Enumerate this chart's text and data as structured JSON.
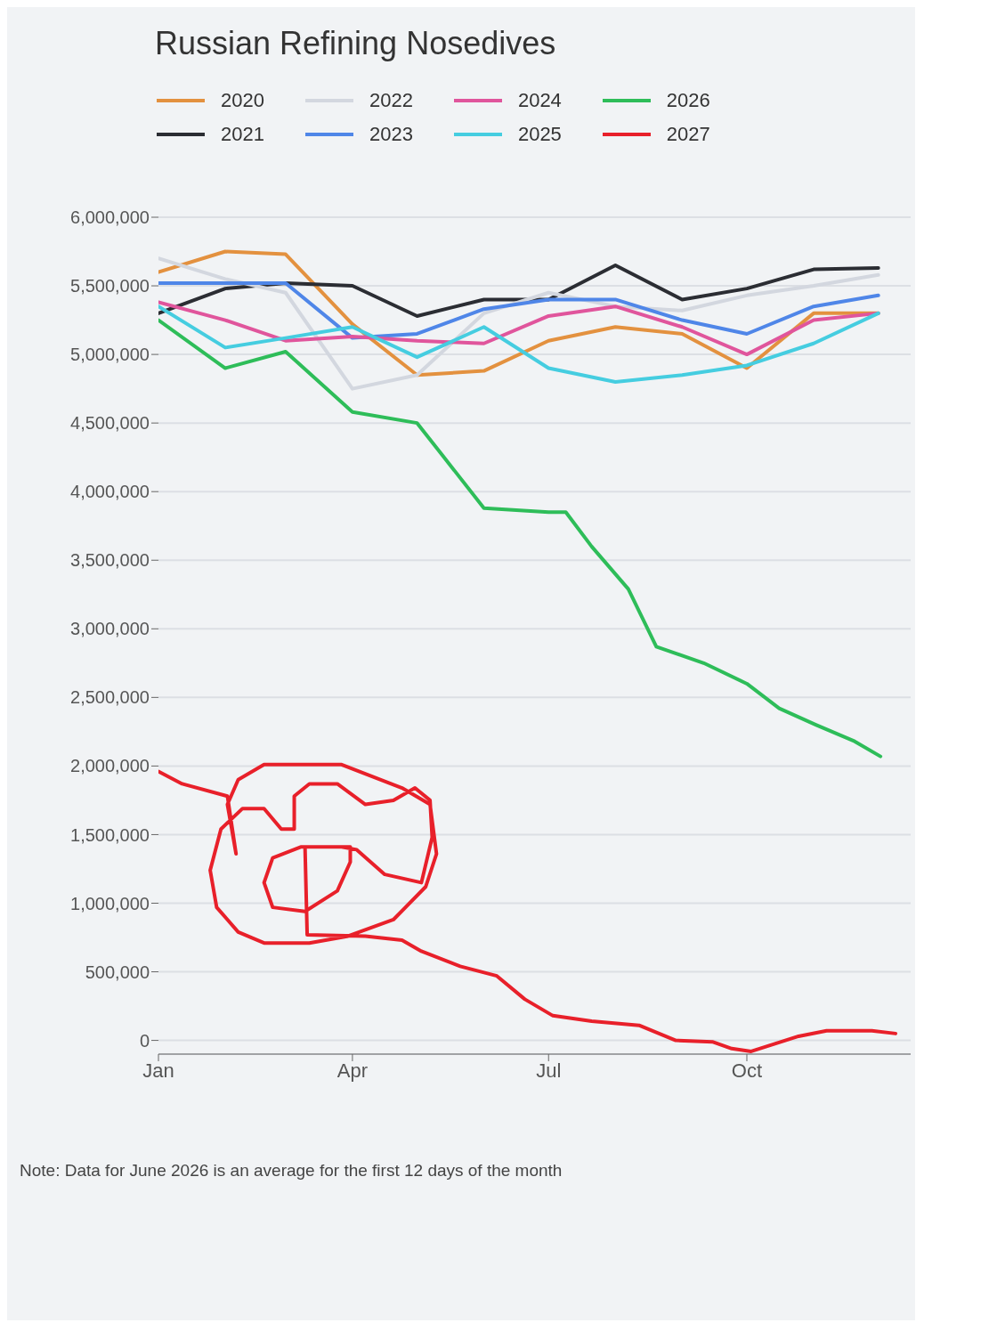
{
  "chart_data": {
    "type": "line",
    "title": "Russian Refining Nosedives",
    "x": [
      "--01-01",
      "--02-01",
      "--03-01",
      "--04-01",
      "--05-01",
      "--06-01",
      "--07-01",
      "--08-01",
      "--09-01",
      "--10-01",
      "--11-01",
      "--12-01"
    ],
    "xlim": [
      "--01-01",
      "--12-16"
    ],
    "xticks": [
      {
        "value": "--01-01",
        "label": "Jan"
      },
      {
        "value": "--04-01",
        "label": "Apr"
      },
      {
        "value": "--07-01",
        "label": "Jul"
      },
      {
        "value": "--10-01",
        "label": "Oct"
      }
    ],
    "ylim": [
      -100000,
      6000000
    ],
    "yticks": [
      {
        "value": 0,
        "label": "0"
      },
      {
        "value": 500000,
        "label": "500,000"
      },
      {
        "value": 1000000,
        "label": "1,000,000"
      },
      {
        "value": 1500000,
        "label": "1,500,000"
      },
      {
        "value": 2000000,
        "label": "2,000,000"
      },
      {
        "value": 2500000,
        "label": "2,500,000"
      },
      {
        "value": 3000000,
        "label": "3,000,000"
      },
      {
        "value": 3500000,
        "label": "3,500,000"
      },
      {
        "value": 4000000,
        "label": "4,000,000"
      },
      {
        "value": 4500000,
        "label": "4,500,000"
      },
      {
        "value": 5000000,
        "label": "5,000,000"
      },
      {
        "value": 5500000,
        "label": "5,500,000"
      },
      {
        "value": 6000000,
        "label": "6,000,000"
      }
    ],
    "grid": "y",
    "legend": "top",
    "marker": "none",
    "line_style": "solid",
    "series": [
      {
        "name": "2020",
        "color": "#e3913f",
        "values": [
          5600000,
          5750000,
          5730000,
          5220000,
          4850000,
          4880000,
          5100000,
          5200000,
          5150000,
          4900000,
          5300000,
          5300000
        ]
      },
      {
        "name": "2021",
        "color": "#2b2d33",
        "values": [
          5300000,
          5480000,
          5520000,
          5500000,
          5280000,
          5400000,
          5400000,
          5650000,
          5400000,
          5480000,
          5620000,
          5630000
        ]
      },
      {
        "name": "2022",
        "color": "#d3d7df",
        "values": [
          5700000,
          5550000,
          5450000,
          4750000,
          4850000,
          5300000,
          5450000,
          5350000,
          5320000,
          5430000,
          5500000,
          5580000
        ]
      },
      {
        "name": "2023",
        "color": "#4f86e8",
        "values": [
          5520000,
          5520000,
          5520000,
          5120000,
          5150000,
          5330000,
          5400000,
          5400000,
          5250000,
          5150000,
          5350000,
          5430000
        ]
      },
      {
        "name": "2024",
        "color": "#e0559c",
        "values": [
          5380000,
          5250000,
          5100000,
          5130000,
          5100000,
          5080000,
          5280000,
          5350000,
          5200000,
          5000000,
          5250000,
          5300000
        ]
      },
      {
        "name": "2025",
        "color": "#45cde0",
        "values": [
          5350000,
          5050000,
          5120000,
          5200000,
          4980000,
          5200000,
          4900000,
          4800000,
          4850000,
          4920000,
          5080000,
          5300000
        ]
      },
      {
        "name": "2026",
        "color": "#2ebd59",
        "x": [
          "--01-01",
          "--02-01",
          "--03-01",
          "--04-01",
          "--05-01",
          "--06-01",
          "--07-01",
          "--07-09",
          "--07-21",
          "--08-07",
          "--08-20",
          "--09-11",
          "--10-01",
          "--10-16",
          "--11-02",
          "--11-20",
          "--12-02"
        ],
        "values": [
          5250000,
          4900000,
          5020000,
          4580000,
          4500000,
          3880000,
          3850000,
          3850000,
          3600000,
          3290000,
          2870000,
          2750000,
          2600000,
          2420000,
          2300000,
          2180000,
          2070000
        ]
      },
      {
        "name": "2027",
        "color": "#e8202a",
        "x": [
          "--01-01",
          "--01-12",
          "--02-02",
          "--02-06",
          "--02-02",
          "--02-07",
          "--02-19",
          "--03-27",
          "--04-24",
          "--05-07",
          "--05-10",
          "--05-05",
          "--04-20",
          "--03-30",
          "--03-12",
          "--02-19",
          "--02-07",
          "--01-28",
          "--01-25",
          "--01-30",
          "--02-09",
          "--02-19",
          "--02-27",
          "--03-05",
          "--03-05",
          "--03-12",
          "--03-25",
          "--04-07",
          "--04-20",
          "--04-30",
          "--05-07",
          "--05-08",
          "--05-03",
          "--04-16",
          "--04-03",
          "--03-27",
          "--03-08",
          "--02-23",
          "--02-19",
          "--02-23",
          "--03-10",
          "--03-25",
          "--03-31",
          "--03-31",
          "--03-10",
          "--03-11",
          "--04-07",
          "--04-24",
          "--05-03",
          "--05-21",
          "--06-07",
          "--06-20",
          "--07-03",
          "--07-21",
          "--08-12",
          "--08-29",
          "--09-15",
          "--09-24",
          "--10-03",
          "--10-25",
          "--11-07",
          "--11-28",
          "--12-09"
        ],
        "values": [
          1960000,
          1870000,
          1780000,
          1360000,
          1720000,
          1900000,
          2010000,
          2010000,
          1840000,
          1720000,
          1360000,
          1120000,
          880000,
          760000,
          710000,
          710000,
          790000,
          970000,
          1240000,
          1540000,
          1690000,
          1690000,
          1540000,
          1540000,
          1780000,
          1870000,
          1870000,
          1720000,
          1750000,
          1840000,
          1750000,
          1480000,
          1150000,
          1210000,
          1390000,
          1410000,
          1410000,
          1330000,
          1150000,
          970000,
          940000,
          1090000,
          1300000,
          1410000,
          1410000,
          770000,
          760000,
          730000,
          650000,
          540000,
          470000,
          300000,
          180000,
          140000,
          110000,
          0,
          -10000,
          -60000,
          -80000,
          30000,
          70000,
          70000,
          50000
        ]
      }
    ],
    "annotations": [
      "Note: Data for June 2026 is an average for the first 12 days of the month"
    ]
  }
}
